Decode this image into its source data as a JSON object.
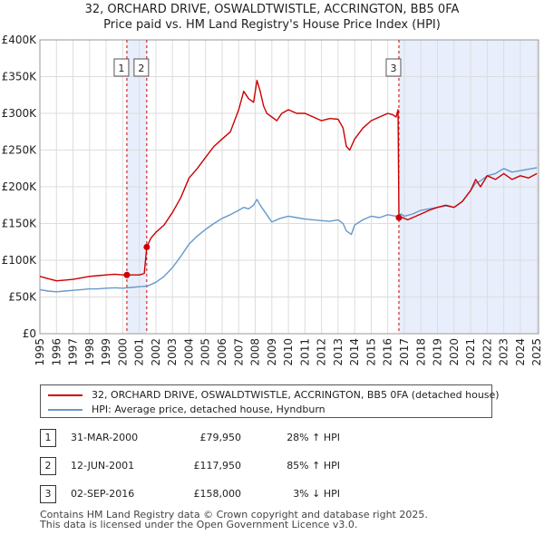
{
  "chart_data": {
    "type": "line",
    "title": "32, ORCHARD DRIVE, OSWALDTWISTLE, ACCRINGTON, BB5 0FA",
    "subtitle": "Price paid vs. HM Land Registry's House Price Index (HPI)",
    "xlim": [
      1995,
      2025.1
    ],
    "ylim": [
      0,
      400000
    ],
    "x_ticks": [
      1995,
      1996,
      1997,
      1998,
      1999,
      2000,
      2001,
      2002,
      2003,
      2004,
      2005,
      2006,
      2007,
      2008,
      2009,
      2010,
      2011,
      2012,
      2013,
      2014,
      2015,
      2016,
      2017,
      2018,
      2019,
      2020,
      2021,
      2022,
      2023,
      2024,
      2025
    ],
    "y_ticks": [
      {
        "value": 0,
        "label": "£0"
      },
      {
        "value": 50000,
        "label": "£50K"
      },
      {
        "value": 100000,
        "label": "£100K"
      },
      {
        "value": 150000,
        "label": "£150K"
      },
      {
        "value": 200000,
        "label": "£200K"
      },
      {
        "value": 250000,
        "label": "£250K"
      },
      {
        "value": 300000,
        "label": "£300K"
      },
      {
        "value": 350000,
        "label": "£350K"
      },
      {
        "value": 400000,
        "label": "£400K"
      }
    ],
    "shaded_periods": [
      [
        2000.25,
        2001.45
      ],
      [
        2016.67,
        2025.1
      ]
    ],
    "series": [
      {
        "name": "32, ORCHARD DRIVE, OSWALDTWISTLE, ACCRINGTON, BB5 0FA (detached house)",
        "color": "#cc0000",
        "x": [
          1995,
          1995.5,
          1996,
          1996.5,
          1997,
          1997.5,
          1998,
          1998.5,
          1999,
          1999.5,
          2000,
          2000.25,
          2000.5,
          2001,
          2001.3,
          2001.45,
          2001.7,
          2002,
          2002.5,
          2003,
          2003.5,
          2004,
          2004.5,
          2005,
          2005.5,
          2006,
          2006.5,
          2007,
          2007.3,
          2007.6,
          2007.9,
          2008.1,
          2008.3,
          2008.5,
          2008.7,
          2009,
          2009.3,
          2009.6,
          2010,
          2010.5,
          2011,
          2011.5,
          2012,
          2012.5,
          2013,
          2013.3,
          2013.5,
          2013.7,
          2014,
          2014.5,
          2015,
          2015.5,
          2016,
          2016.3,
          2016.5,
          2016.62,
          2016.67,
          2016.9,
          2017.2,
          2017.5,
          2018,
          2018.5,
          2019,
          2019.5,
          2020,
          2020.5,
          2021,
          2021.3,
          2021.6,
          2022,
          2022.5,
          2023,
          2023.5,
          2024,
          2024.5,
          2025
        ],
        "values": [
          78000,
          75000,
          72000,
          73000,
          74000,
          76000,
          78000,
          79000,
          80000,
          81000,
          80000,
          79950,
          80000,
          80000,
          82000,
          117950,
          130000,
          138000,
          148000,
          165000,
          185000,
          212000,
          225000,
          240000,
          255000,
          265000,
          275000,
          305000,
          330000,
          320000,
          315000,
          345000,
          330000,
          310000,
          300000,
          295000,
          290000,
          300000,
          305000,
          300000,
          300000,
          295000,
          290000,
          293000,
          292000,
          280000,
          255000,
          250000,
          265000,
          280000,
          290000,
          295000,
          300000,
          298000,
          295000,
          305000,
          158000,
          158000,
          155000,
          158000,
          163000,
          168000,
          172000,
          175000,
          172000,
          180000,
          195000,
          210000,
          200000,
          215000,
          210000,
          218000,
          210000,
          215000,
          212000,
          218000
        ]
      },
      {
        "name": "HPI: Average price, detached house, Hyndburn",
        "color": "#6699cc",
        "x": [
          1995,
          1995.5,
          1996,
          1996.5,
          1997,
          1997.5,
          1998,
          1998.5,
          1999,
          1999.5,
          2000,
          2000.5,
          2001,
          2001.5,
          2002,
          2002.5,
          2003,
          2003.5,
          2004,
          2004.5,
          2005,
          2005.5,
          2006,
          2006.5,
          2007,
          2007.3,
          2007.6,
          2007.9,
          2008.1,
          2008.3,
          2008.6,
          2009,
          2009.5,
          2010,
          2010.5,
          2011,
          2011.5,
          2012,
          2012.5,
          2013,
          2013.3,
          2013.5,
          2013.8,
          2014,
          2014.5,
          2015,
          2015.5,
          2016,
          2016.5,
          2016.8,
          2017,
          2017.5,
          2018,
          2018.5,
          2019,
          2019.5,
          2020,
          2020.5,
          2021,
          2021.3,
          2021.6,
          2022,
          2022.5,
          2023,
          2023.5,
          2024,
          2024.5,
          2025
        ],
        "values": [
          60000,
          58000,
          57000,
          58000,
          59000,
          60000,
          61000,
          61000,
          62000,
          62500,
          62000,
          63000,
          64000,
          65000,
          70000,
          78000,
          90000,
          105000,
          122000,
          133000,
          142000,
          150000,
          157000,
          162000,
          168000,
          172000,
          170000,
          175000,
          183000,
          175000,
          165000,
          152000,
          157000,
          160000,
          158000,
          156000,
          155000,
          154000,
          153000,
          155000,
          150000,
          140000,
          135000,
          148000,
          155000,
          160000,
          158000,
          162000,
          160000,
          163000,
          160000,
          163000,
          168000,
          170000,
          172000,
          174000,
          172000,
          180000,
          195000,
          205000,
          208000,
          215000,
          218000,
          225000,
          220000,
          222000,
          224000,
          226000
        ]
      }
    ],
    "markers": [
      {
        "label": "1",
        "x": 2000.25,
        "value": 79950
      },
      {
        "label": "2",
        "x": 2001.45,
        "value": 117950
      },
      {
        "label": "3",
        "x": 2016.67,
        "value": 158000
      }
    ],
    "colors": {
      "price": "#cc0000",
      "hpi": "#6699cc",
      "shade": "#e8eefb",
      "grid": "#dddddd",
      "vline": "#cc0000"
    }
  },
  "legend": {
    "price_label": "32, ORCHARD DRIVE, OSWALDTWISTLE, ACCRINGTON, BB5 0FA (detached house)",
    "hpi_label": "HPI: Average price, detached house, Hyndburn"
  },
  "sales": [
    {
      "num": "1",
      "date": "31-MAR-2000",
      "price": "£79,950",
      "hpi": "28% ↑ HPI"
    },
    {
      "num": "2",
      "date": "12-JUN-2001",
      "price": "£117,950",
      "hpi": "85% ↑ HPI"
    },
    {
      "num": "3",
      "date": "02-SEP-2016",
      "price": "£158,000",
      "hpi": "3% ↓ HPI"
    }
  ],
  "footer": {
    "line1": "Contains HM Land Registry data © Crown copyright and database right 2025.",
    "line2": "This data is licensed under the Open Government Licence v3.0."
  }
}
